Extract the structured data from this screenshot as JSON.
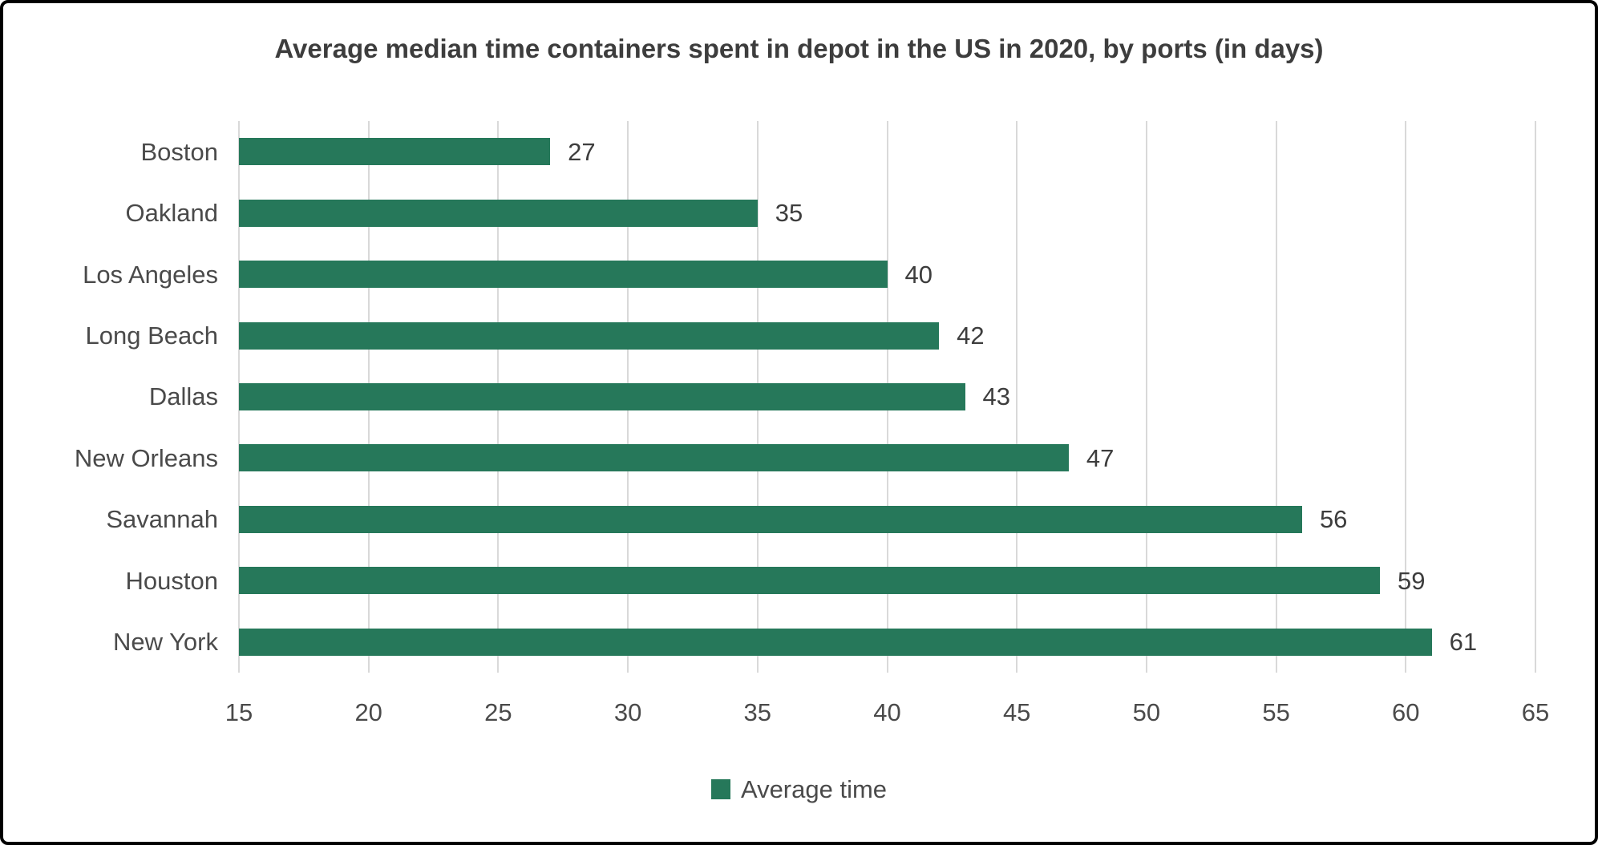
{
  "chart_data": {
    "type": "bar",
    "orientation": "horizontal",
    "title": "Average median time containers spent in depot in the US in 2020, by ports (in days)",
    "categories": [
      "Boston",
      "Oakland",
      "Los Angeles",
      "Long Beach",
      "Dallas",
      "New Orleans",
      "Savannah",
      "Houston",
      "New York"
    ],
    "values": [
      27,
      35,
      40,
      42,
      43,
      47,
      56,
      59,
      61
    ],
    "legend_label": "Average time",
    "legend_position": "bottom-center",
    "xlabel": "",
    "ylabel": "",
    "xlim": [
      15,
      65
    ],
    "xticks": [
      15,
      20,
      25,
      30,
      35,
      40,
      45,
      50,
      55,
      60,
      65
    ],
    "grid": "vertical-gridlines-only",
    "colors": {
      "bar": "#26785a",
      "gridline": "#d9d9d9",
      "title_text": "#3d3d3d",
      "label_text": "#4a4a4a",
      "value_text": "#3d3d3d",
      "frame_border": "#000000",
      "background": "#ffffff"
    }
  }
}
